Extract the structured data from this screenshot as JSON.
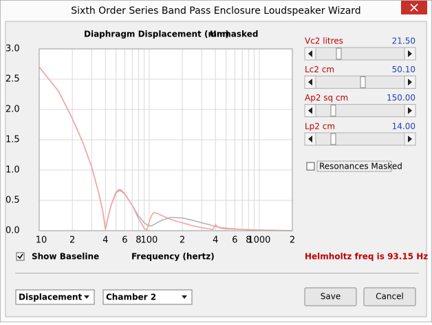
{
  "window": {
    "title": "Sixth Order Series Band Pass Enclosure Loudspeaker Wizard"
  },
  "chart_data": {
    "type": "line",
    "title": "Diaphragm Displacement (mm)",
    "subtitle": "Unmasked",
    "x_label": "Frequency (hertz)",
    "log_x": true,
    "grid": true,
    "x": [
      10,
      15,
      20,
      25,
      30,
      35,
      38,
      40,
      42,
      45,
      50,
      53,
      56,
      60,
      70,
      80,
      90,
      95,
      100,
      105,
      110,
      120,
      130,
      150,
      160,
      200,
      250,
      300,
      350,
      380,
      400,
      420,
      450,
      500,
      700,
      1000,
      2000
    ],
    "series": [
      {
        "color": "#b4b4b4",
        "values": [
          2.7,
          2.3,
          1.85,
          1.45,
          1.05,
          0.6,
          0.3,
          0.02,
          0.2,
          0.42,
          0.62,
          0.66,
          0.65,
          0.6,
          0.42,
          0.24,
          0.13,
          0.1,
          0.08,
          0.08,
          0.1,
          0.14,
          0.17,
          0.21,
          0.22,
          0.21,
          0.17,
          0.13,
          0.1,
          0.08,
          0.07,
          0.06,
          0.05,
          0.04,
          0.02,
          0.01,
          0
        ]
      },
      {
        "color": "#f4a4a4",
        "values": [
          2.7,
          2.3,
          1.85,
          1.45,
          1.05,
          0.6,
          0.3,
          0.02,
          0.2,
          0.42,
          0.64,
          0.68,
          0.67,
          0.61,
          0.42,
          0.2,
          0.04,
          0.01,
          0.15,
          0.25,
          0.3,
          0.28,
          0.25,
          0.2,
          0.18,
          0.13,
          0.08,
          0.05,
          0.03,
          0.02,
          0.1,
          0.06,
          0.04,
          0.03,
          0.02,
          0.01,
          0
        ]
      }
    ],
    "xlim": [
      10,
      2000
    ],
    "xticks": [
      10,
      {
        "value": 20,
        "label": "2"
      },
      {
        "value": 40,
        "label": "4"
      },
      {
        "value": 60,
        "label": "6"
      },
      {
        "value": 80,
        "label": "8"
      },
      100,
      {
        "value": 200,
        "label": "2"
      },
      {
        "value": 400,
        "label": "4"
      },
      {
        "value": 600,
        "label": "6"
      },
      {
        "value": 800,
        "label": "8"
      },
      1000,
      {
        "value": 2000,
        "label": "2"
      }
    ],
    "xminor": [
      30,
      50,
      70,
      90,
      300,
      500,
      700,
      900
    ],
    "ylim": [
      0,
      3
    ],
    "yticks": [
      {
        "value": 0,
        "label": "0.0"
      },
      0.5,
      {
        "value": 1,
        "label": "1.0"
      },
      1.5,
      {
        "value": 2,
        "label": "2.0"
      },
      2.5,
      {
        "value": 3,
        "label": "3.0"
      }
    ]
  },
  "controls": {
    "sliders": [
      {
        "label": "Vc2  litres",
        "value": "21.50"
      },
      {
        "label": "Lc2  cm",
        "value": "50.10"
      },
      {
        "label": "Ap2  sq cm",
        "value": "150.00"
      },
      {
        "label": "Lp2  cm",
        "value": "14.00"
      }
    ],
    "resonances": {
      "label": "Resonances Masked",
      "checked": false
    },
    "baseline": {
      "label": "Show Baseline",
      "checked": true
    },
    "status": "Helmholtz freq is 93.15 Hz",
    "dropdowns": [
      "Displacement",
      "Chamber 2"
    ],
    "buttons": [
      "Save",
      "Cancel"
    ]
  }
}
